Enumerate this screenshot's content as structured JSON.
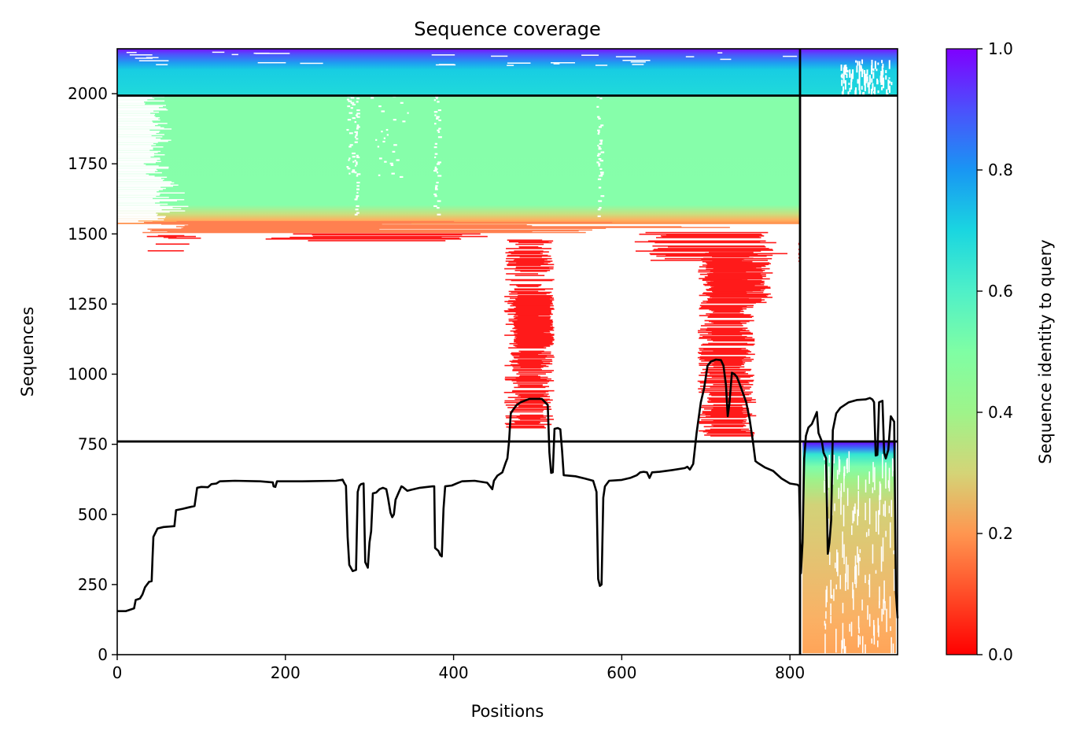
{
  "chart_data": {
    "type": "heatmap",
    "title": "Sequence coverage",
    "xlabel": "Positions",
    "ylabel": "Sequences",
    "xlim": [
      0,
      928
    ],
    "ylim": [
      0,
      2160
    ],
    "x_ticks": [
      0,
      200,
      400,
      600,
      800
    ],
    "y_ticks": [
      0,
      250,
      500,
      750,
      1000,
      1250,
      1500,
      1750,
      2000
    ],
    "colorbar": {
      "label": "Sequence identity to query",
      "colormap": "rainbow_r",
      "range": [
        0.0,
        1.0
      ],
      "ticks": [
        "0.0",
        "0.2",
        "0.4",
        "0.6",
        "0.8",
        "1.0"
      ]
    },
    "separator_lines": {
      "x": 812,
      "y": [
        760,
        1993
      ]
    },
    "blocks": [
      {
        "name": "block-top-left",
        "x_range": [
          0,
          812
        ],
        "y_range": [
          1993,
          2160
        ],
        "identity": [
          0.65,
          0.95
        ]
      },
      {
        "name": "block-top-right",
        "x_range": [
          812,
          928
        ],
        "y_range": [
          1993,
          2160
        ],
        "identity": [
          0.65,
          0.95
        ]
      },
      {
        "name": "block-mid-left",
        "x_range": [
          0,
          812
        ],
        "y_range": [
          1500,
          1993
        ],
        "identity": [
          0.0,
          0.45
        ]
      },
      {
        "name": "block-bottom-right",
        "x_range": [
          812,
          928
        ],
        "y_range": [
          0,
          760
        ],
        "identity": [
          0.2,
          0.95
        ]
      }
    ],
    "series": [
      {
        "type": "line",
        "color": "#000000",
        "points": [
          [
            0,
            155
          ],
          [
            10,
            155
          ],
          [
            15,
            160
          ],
          [
            20,
            165
          ],
          [
            22,
            195
          ],
          [
            27,
            200
          ],
          [
            30,
            215
          ],
          [
            33,
            240
          ],
          [
            38,
            260
          ],
          [
            41,
            262
          ],
          [
            42,
            345
          ],
          [
            43,
            420
          ],
          [
            48,
            450
          ],
          [
            55,
            455
          ],
          [
            68,
            458
          ],
          [
            70,
            515
          ],
          [
            78,
            520
          ],
          [
            85,
            525
          ],
          [
            92,
            530
          ],
          [
            95,
            595
          ],
          [
            100,
            598
          ],
          [
            108,
            597
          ],
          [
            112,
            608
          ],
          [
            118,
            610
          ],
          [
            122,
            618
          ],
          [
            140,
            620
          ],
          [
            170,
            618
          ],
          [
            185,
            614
          ],
          [
            186,
            600
          ],
          [
            188,
            598
          ],
          [
            190,
            618
          ],
          [
            220,
            618
          ],
          [
            260,
            620
          ],
          [
            268,
            624
          ],
          [
            270,
            612
          ],
          [
            272,
            602
          ],
          [
            274,
            420
          ],
          [
            276,
            320
          ],
          [
            280,
            298
          ],
          [
            284,
            302
          ],
          [
            286,
            580
          ],
          [
            288,
            602
          ],
          [
            290,
            608
          ],
          [
            293,
            610
          ],
          [
            295,
            330
          ],
          [
            298,
            310
          ],
          [
            300,
            400
          ],
          [
            302,
            440
          ],
          [
            304,
            575
          ],
          [
            308,
            578
          ],
          [
            312,
            590
          ],
          [
            316,
            595
          ],
          [
            320,
            590
          ],
          [
            322,
            560
          ],
          [
            325,
            506
          ],
          [
            327,
            490
          ],
          [
            329,
            500
          ],
          [
            331,
            552
          ],
          [
            335,
            580
          ],
          [
            338,
            600
          ],
          [
            340,
            597
          ],
          [
            345,
            584
          ],
          [
            350,
            588
          ],
          [
            360,
            595
          ],
          [
            375,
            600
          ],
          [
            377,
            600
          ],
          [
            378,
            380
          ],
          [
            382,
            370
          ],
          [
            384,
            355
          ],
          [
            386,
            350
          ],
          [
            388,
            520
          ],
          [
            390,
            600
          ],
          [
            398,
            603
          ],
          [
            405,
            612
          ],
          [
            410,
            618
          ],
          [
            425,
            620
          ],
          [
            440,
            613
          ],
          [
            444,
            598
          ],
          [
            446,
            590
          ],
          [
            448,
            620
          ],
          [
            452,
            638
          ],
          [
            458,
            650
          ],
          [
            462,
            685
          ],
          [
            464,
            700
          ],
          [
            466,
            760
          ],
          [
            468,
            860
          ],
          [
            470,
            870
          ],
          [
            475,
            890
          ],
          [
            480,
            900
          ],
          [
            490,
            912
          ],
          [
            505,
            912
          ],
          [
            512,
            890
          ],
          [
            514,
            720
          ],
          [
            516,
            648
          ],
          [
            518,
            650
          ],
          [
            520,
            805
          ],
          [
            524,
            808
          ],
          [
            527,
            803
          ],
          [
            529,
            728
          ],
          [
            531,
            640
          ],
          [
            545,
            636
          ],
          [
            556,
            628
          ],
          [
            566,
            620
          ],
          [
            568,
            600
          ],
          [
            570,
            580
          ],
          [
            572,
            270
          ],
          [
            574,
            245
          ],
          [
            576,
            250
          ],
          [
            578,
            560
          ],
          [
            580,
            600
          ],
          [
            585,
            620
          ],
          [
            600,
            623
          ],
          [
            610,
            630
          ],
          [
            618,
            640
          ],
          [
            622,
            650
          ],
          [
            626,
            652
          ],
          [
            630,
            650
          ],
          [
            633,
            630
          ],
          [
            636,
            650
          ],
          [
            645,
            652
          ],
          [
            660,
            658
          ],
          [
            675,
            665
          ],
          [
            678,
            670
          ],
          [
            681,
            660
          ],
          [
            685,
            680
          ],
          [
            689,
            790
          ],
          [
            694,
            900
          ],
          [
            698,
            950
          ],
          [
            702,
            1030
          ],
          [
            706,
            1045
          ],
          [
            712,
            1052
          ],
          [
            718,
            1050
          ],
          [
            721,
            1030
          ],
          [
            724,
            960
          ],
          [
            726,
            850
          ],
          [
            728,
            895
          ],
          [
            731,
            1005
          ],
          [
            734,
            1000
          ],
          [
            737,
            990
          ],
          [
            742,
            950
          ],
          [
            748,
            900
          ],
          [
            752,
            840
          ],
          [
            756,
            760
          ],
          [
            759,
            690
          ],
          [
            762,
            683
          ],
          [
            770,
            668
          ],
          [
            780,
            655
          ],
          [
            790,
            628
          ],
          [
            800,
            610
          ],
          [
            809,
            606
          ],
          [
            811,
            600
          ],
          [
            813,
            290
          ],
          [
            815,
            400
          ],
          [
            817,
            700
          ],
          [
            819,
            780
          ],
          [
            822,
            810
          ],
          [
            826,
            822
          ],
          [
            830,
            850
          ],
          [
            832,
            865
          ],
          [
            834,
            790
          ],
          [
            838,
            760
          ],
          [
            840,
            720
          ],
          [
            843,
            700
          ],
          [
            845,
            360
          ],
          [
            847,
            400
          ],
          [
            849,
            480
          ],
          [
            851,
            800
          ],
          [
            855,
            860
          ],
          [
            860,
            880
          ],
          [
            870,
            900
          ],
          [
            880,
            908
          ],
          [
            890,
            910
          ],
          [
            895,
            915
          ],
          [
            898,
            910
          ],
          [
            900,
            900
          ],
          [
            902,
            710
          ],
          [
            904,
            712
          ],
          [
            906,
            900
          ],
          [
            910,
            905
          ],
          [
            912,
            720
          ],
          [
            914,
            700
          ],
          [
            917,
            730
          ],
          [
            920,
            850
          ],
          [
            924,
            830
          ],
          [
            926,
            220
          ],
          [
            928,
            130
          ]
        ]
      }
    ]
  }
}
